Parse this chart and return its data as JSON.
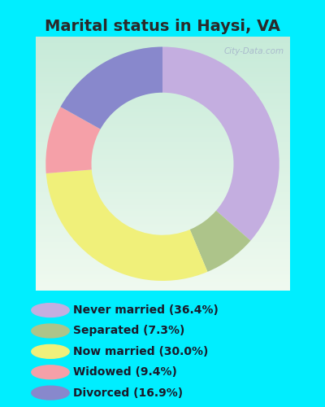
{
  "title": "Marital status in Haysi, VA",
  "title_fontsize": 14,
  "title_color": "#2a2a2a",
  "background_color": "#00eeff",
  "chart_bg_top": "#e8f5e9",
  "chart_bg_bottom": "#c8ece0",
  "watermark": "City-Data.com",
  "pie_values": [
    36.4,
    7.3,
    30.0,
    9.4,
    16.9
  ],
  "pie_colors": [
    "#c4aee0",
    "#adc48a",
    "#f0f07a",
    "#f5a0a8",
    "#8888cc"
  ],
  "legend_labels": [
    "Never married (36.4%)",
    "Separated (7.3%)",
    "Now married (30.0%)",
    "Widowed (9.4%)",
    "Divorced (16.9%)"
  ],
  "legend_colors": [
    "#c4aee0",
    "#adc48a",
    "#f0f07a",
    "#f5a0a8",
    "#8888cc"
  ],
  "donut_width": 0.45,
  "start_angle": 90
}
